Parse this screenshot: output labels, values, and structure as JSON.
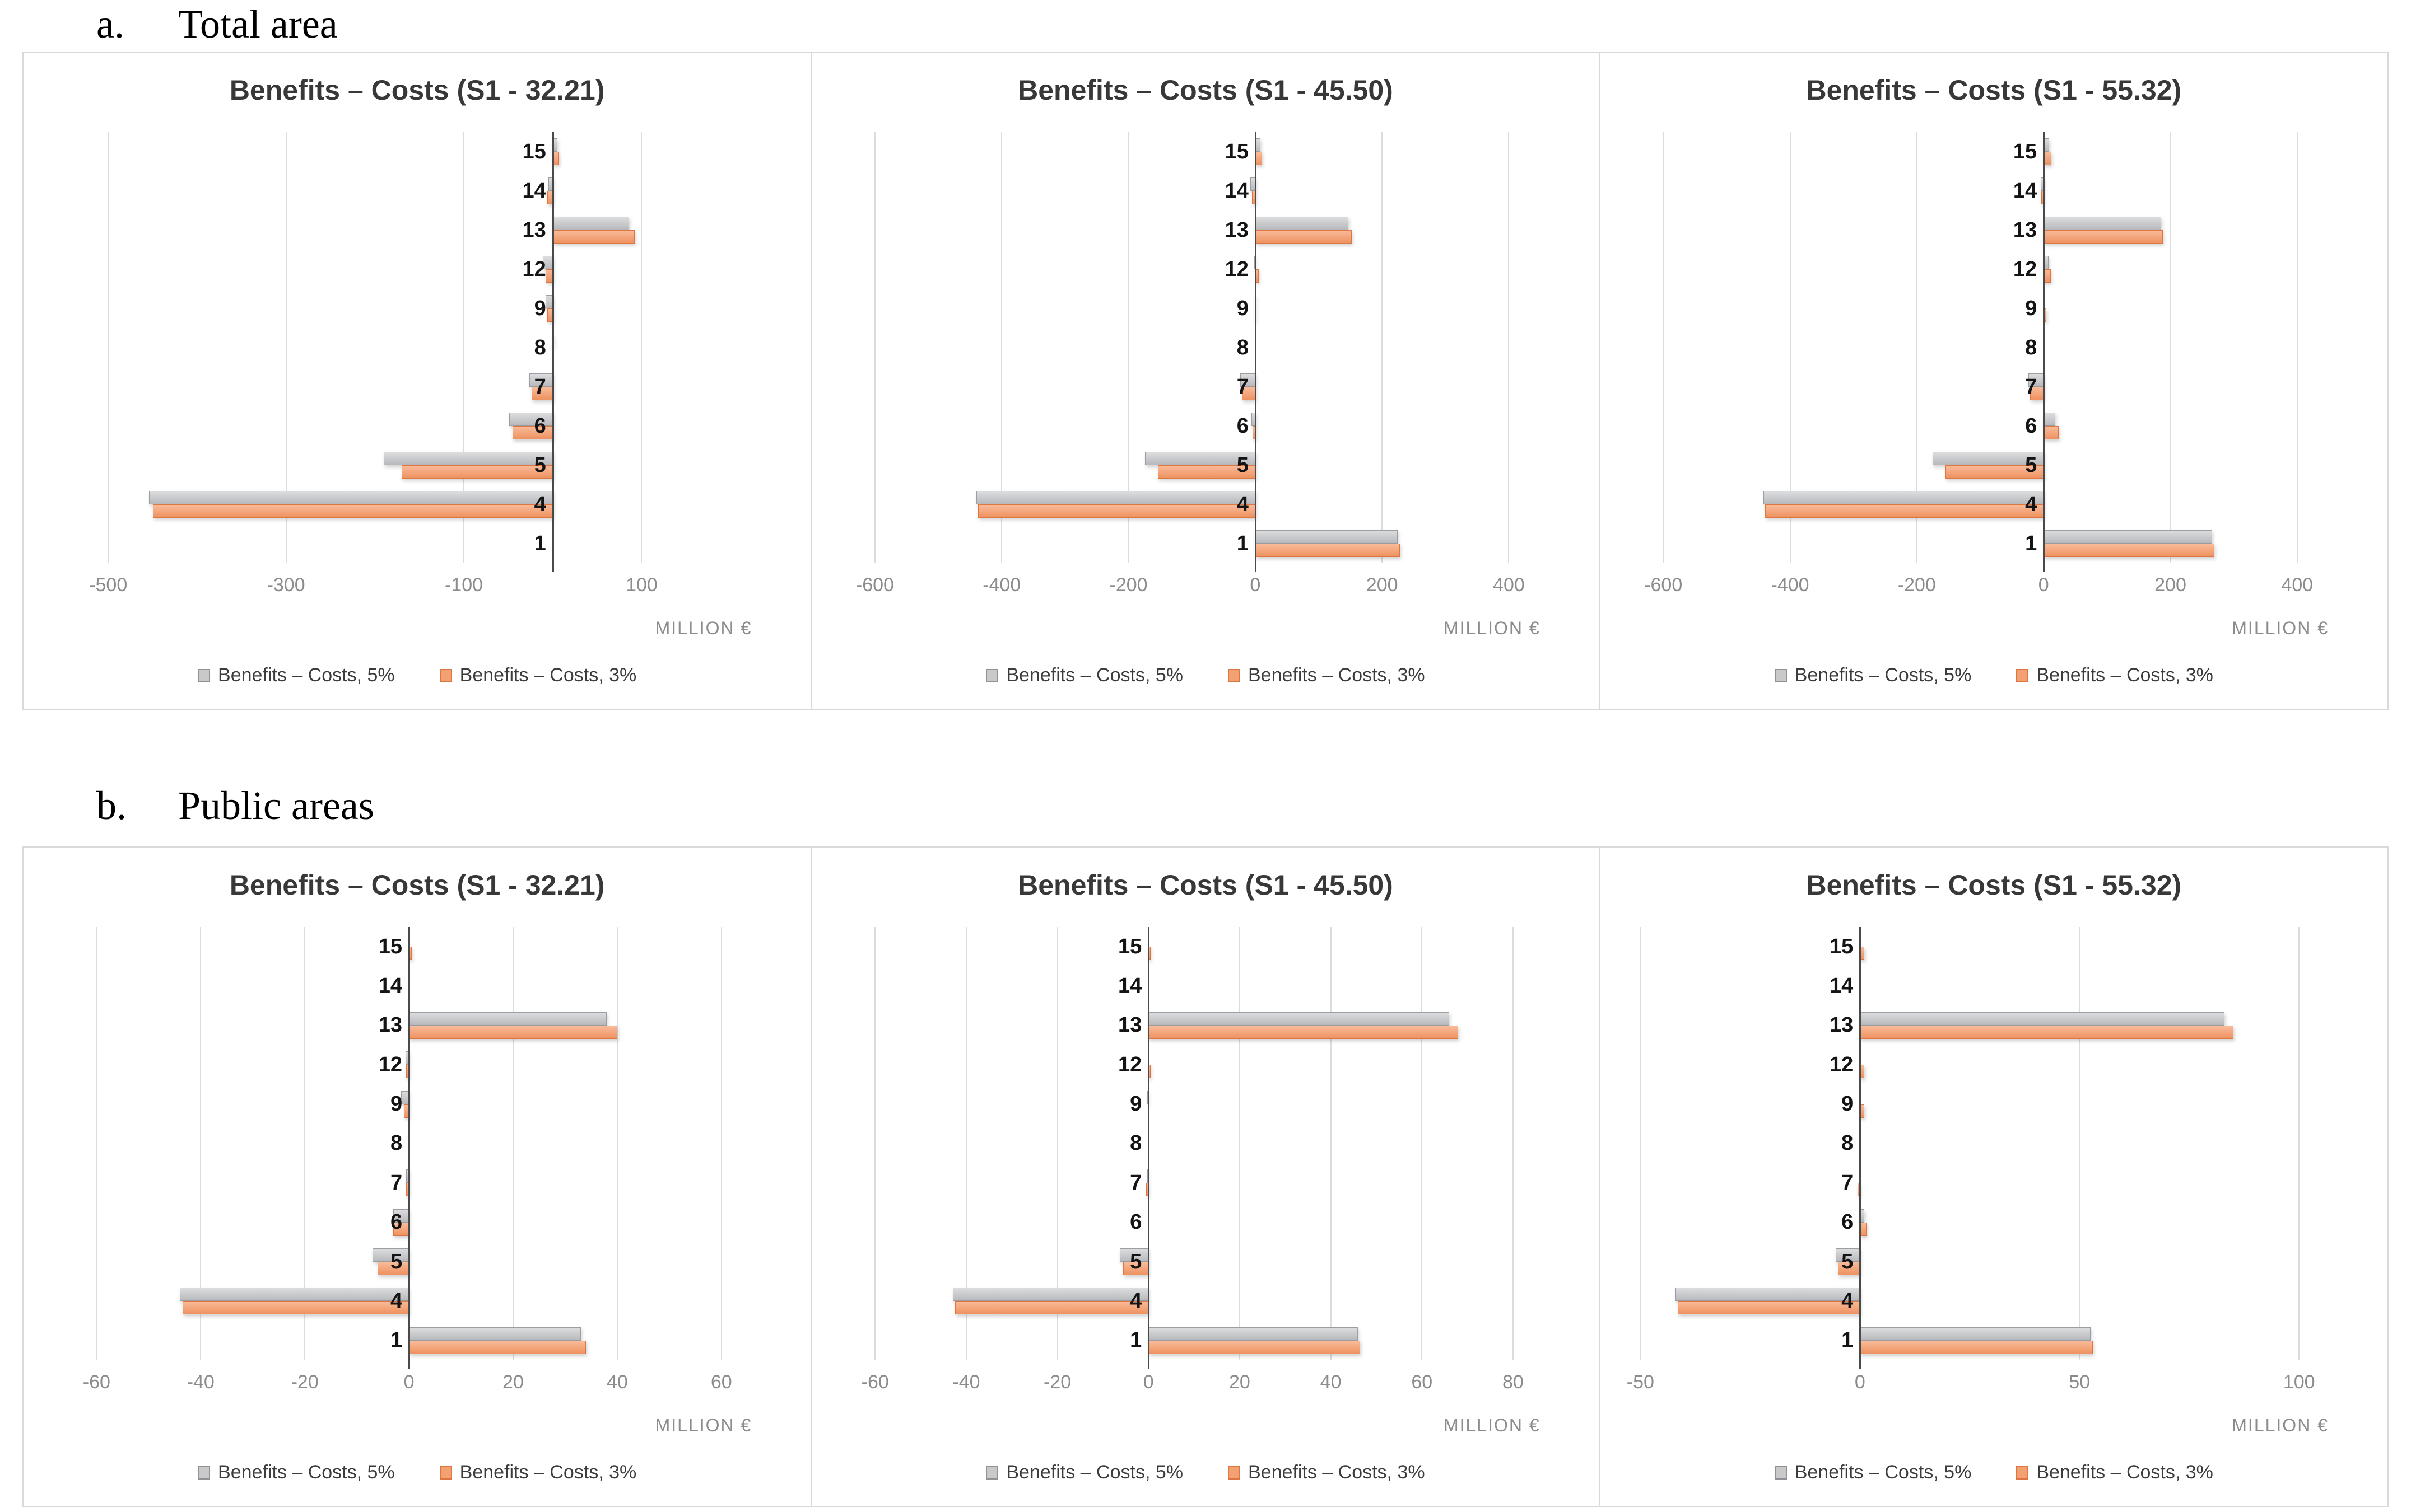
{
  "headings": {
    "a_num": "a.",
    "a": "Total area",
    "b_num": "b.",
    "b": "Public areas"
  },
  "colors": {
    "series_5pct_fill": "#c9c9c9",
    "series_5pct_border": "#9b9ea3",
    "series_3pct_fill": "#f3a072",
    "series_3pct_border": "#e0763f",
    "gridline": "#dcdcdc",
    "axis": "#4a4a4a",
    "tick_text": "#8c8c8c",
    "title_text": "#383838"
  },
  "chart_data": [
    {
      "type": "bar",
      "orientation": "horizontal",
      "group": "Total area",
      "title": "Benefits – Costs (S1 - 32.21)",
      "xlabel": "MILLION €",
      "categories": [
        "15",
        "14",
        "13",
        "12",
        "9",
        "8",
        "7",
        "6",
        "5",
        "4",
        "1"
      ],
      "xlim": [
        -560,
        260
      ],
      "ticks": [
        -500,
        -300,
        -100,
        100
      ],
      "grid": true,
      "legend_position": "bottom",
      "series": [
        {
          "name": "Benefits – Costs, 5%",
          "color": "#c9c9c9",
          "values": [
            5,
            -5,
            86,
            -11,
            -8,
            1,
            -26,
            -49,
            -190,
            -454,
            0
          ]
        },
        {
          "name": "Benefits – Costs, 3%",
          "color": "#f3a072",
          "values": [
            7,
            -6,
            92,
            -8,
            -6,
            0,
            -24,
            -45,
            -170,
            -450,
            0
          ]
        }
      ]
    },
    {
      "type": "bar",
      "orientation": "horizontal",
      "group": "Total area",
      "title": "Benefits – Costs (S1 - 45.50)",
      "xlabel": "MILLION €",
      "categories": [
        "15",
        "14",
        "13",
        "12",
        "9",
        "8",
        "7",
        "6",
        "5",
        "4",
        "1"
      ],
      "xlim": [
        -650,
        500
      ],
      "ticks": [
        -600,
        -400,
        -200,
        0,
        200,
        400
      ],
      "grid": true,
      "legend_position": "bottom",
      "series": [
        {
          "name": "Benefits – Costs, 5%",
          "color": "#c9c9c9",
          "values": [
            8,
            -8,
            147,
            -2,
            -1,
            0,
            -24,
            -6,
            -174,
            -440,
            225
          ]
        },
        {
          "name": "Benefits – Costs, 3%",
          "color": "#f3a072",
          "values": [
            11,
            -5,
            152,
            5,
            -1,
            0,
            -21,
            -4,
            -154,
            -437,
            228
          ]
        }
      ]
    },
    {
      "type": "bar",
      "orientation": "horizontal",
      "group": "Total area",
      "title": "Benefits – Costs (S1 - 55.32)",
      "xlabel": "MILLION €",
      "categories": [
        "15",
        "14",
        "13",
        "12",
        "9",
        "8",
        "7",
        "6",
        "5",
        "4",
        "1"
      ],
      "xlim": [
        -650,
        500
      ],
      "ticks": [
        -600,
        -400,
        -200,
        0,
        200,
        400
      ],
      "grid": true,
      "legend_position": "bottom",
      "series": [
        {
          "name": "Benefits – Costs, 5%",
          "color": "#c9c9c9",
          "values": [
            9,
            -5,
            185,
            8,
            0,
            0,
            -24,
            18,
            -175,
            -442,
            266
          ]
        },
        {
          "name": "Benefits – Costs, 3%",
          "color": "#f3a072",
          "values": [
            12,
            -4,
            188,
            11,
            4,
            0,
            -21,
            24,
            -155,
            -439,
            269
          ]
        }
      ]
    },
    {
      "type": "bar",
      "orientation": "horizontal",
      "group": "Public areas",
      "title": "Benefits – Costs (S1 - 32.21)",
      "xlabel": "MILLION €",
      "categories": [
        "15",
        "14",
        "13",
        "12",
        "9",
        "8",
        "7",
        "6",
        "5",
        "4",
        "1"
      ],
      "xlim": [
        -68,
        72
      ],
      "ticks": [
        -60,
        -40,
        -20,
        0,
        20,
        40,
        60
      ],
      "grid": true,
      "legend_position": "bottom",
      "series": [
        {
          "name": "Benefits – Costs, 5%",
          "color": "#c9c9c9",
          "values": [
            0,
            0,
            38,
            -0.6,
            -1.5,
            0,
            -0.5,
            -3,
            -7,
            -44,
            33
          ]
        },
        {
          "name": "Benefits – Costs, 3%",
          "color": "#f3a072",
          "values": [
            0.5,
            0,
            40,
            -0.5,
            -1,
            0,
            -0.5,
            -3,
            -6,
            -43.5,
            34
          ]
        }
      ]
    },
    {
      "type": "bar",
      "orientation": "horizontal",
      "group": "Public areas",
      "title": "Benefits – Costs (S1 - 45.50)",
      "xlabel": "MILLION €",
      "categories": [
        "15",
        "14",
        "13",
        "12",
        "9",
        "8",
        "7",
        "6",
        "5",
        "4",
        "1"
      ],
      "xlim": [
        -67,
        93
      ],
      "ticks": [
        -60,
        -40,
        -20,
        0,
        20,
        40,
        60,
        80
      ],
      "grid": true,
      "legend_position": "bottom",
      "series": [
        {
          "name": "Benefits – Costs, 5%",
          "color": "#c9c9c9",
          "values": [
            0,
            0,
            66,
            0,
            -0.3,
            0,
            -0.3,
            0,
            -6.3,
            -43,
            46
          ]
        },
        {
          "name": "Benefits – Costs, 3%",
          "color": "#f3a072",
          "values": [
            0.5,
            0,
            68,
            0.5,
            0,
            0,
            -0.5,
            0,
            -5.6,
            -42.5,
            46.5
          ]
        }
      ]
    },
    {
      "type": "bar",
      "orientation": "horizontal",
      "group": "Public areas",
      "title": "Benefits – Costs (S1 - 55.32)",
      "xlabel": "MILLION €",
      "categories": [
        "15",
        "14",
        "13",
        "12",
        "9",
        "8",
        "7",
        "6",
        "5",
        "4",
        "1"
      ],
      "xlim": [
        -52,
        114
      ],
      "ticks": [
        -50,
        0,
        50,
        100
      ],
      "grid": true,
      "legend_position": "bottom",
      "series": [
        {
          "name": "Benefits – Costs, 5%",
          "color": "#c9c9c9",
          "values": [
            0,
            0,
            83,
            0,
            0,
            0,
            0,
            1,
            -5.5,
            -42,
            52.5
          ]
        },
        {
          "name": "Benefits – Costs, 3%",
          "color": "#f3a072",
          "values": [
            1,
            0,
            85,
            1,
            1,
            0,
            -0.5,
            1.5,
            -5,
            -41.5,
            53
          ]
        }
      ]
    }
  ]
}
